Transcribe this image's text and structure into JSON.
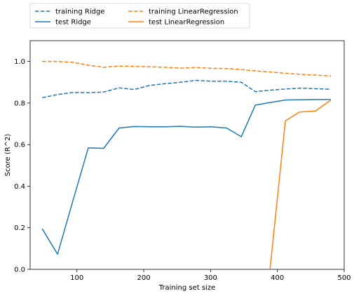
{
  "chart_data": {
    "type": "line",
    "title": "",
    "xlabel": "Training set size",
    "ylabel": "Score (R^2)",
    "xlim": [
      30,
      500
    ],
    "ylim": [
      0.0,
      1.1
    ],
    "xticks": [
      100,
      200,
      300,
      400,
      500
    ],
    "yticks": [
      0.0,
      0.2,
      0.4,
      0.6,
      0.8,
      1.0
    ],
    "grid": false,
    "legend_position": "upper-left-outside",
    "series": [
      {
        "name": "training Ridge",
        "color": "#1f77b4",
        "linestyle": "dashed",
        "x": [
          48,
          71,
          94,
          117,
          140,
          163,
          186,
          209,
          232,
          255,
          278,
          301,
          324,
          346,
          367,
          390,
          413,
          436,
          459,
          480
        ],
        "y": [
          0.826,
          0.841,
          0.851,
          0.85,
          0.853,
          0.873,
          0.865,
          0.885,
          0.893,
          0.9,
          0.909,
          0.905,
          0.905,
          0.9,
          0.855,
          0.862,
          0.868,
          0.872,
          0.869,
          0.866
        ]
      },
      {
        "name": "test Ridge",
        "color": "#1f77b4",
        "linestyle": "solid",
        "x": [
          48,
          71,
          94,
          117,
          140,
          163,
          186,
          209,
          232,
          255,
          278,
          301,
          324,
          346,
          367,
          390,
          413,
          436,
          459,
          480
        ],
        "y": [
          0.195,
          0.073,
          0.33,
          0.584,
          0.582,
          0.68,
          0.687,
          0.686,
          0.686,
          0.688,
          0.684,
          0.686,
          0.68,
          0.638,
          0.79,
          0.803,
          0.815,
          0.816,
          0.817,
          0.817
        ]
      },
      {
        "name": "training LinearRegression",
        "color": "#ff7f0e",
        "linestyle": "dashed",
        "x": [
          48,
          71,
          94,
          117,
          140,
          163,
          186,
          209,
          232,
          255,
          278,
          301,
          324,
          346,
          367,
          390,
          413,
          436,
          459,
          480
        ],
        "y": [
          1.0,
          1.0,
          0.996,
          0.982,
          0.972,
          0.978,
          0.976,
          0.974,
          0.972,
          0.968,
          0.971,
          0.967,
          0.966,
          0.961,
          0.955,
          0.949,
          0.943,
          0.938,
          0.934,
          0.93
        ]
      },
      {
        "name": "test LinearRegression",
        "color": "#ff7f0e",
        "linestyle": "solid",
        "x": [
          389,
          412,
          433,
          457,
          480
        ],
        "y": [
          0.0,
          0.714,
          0.757,
          0.762,
          0.814
        ]
      }
    ]
  }
}
